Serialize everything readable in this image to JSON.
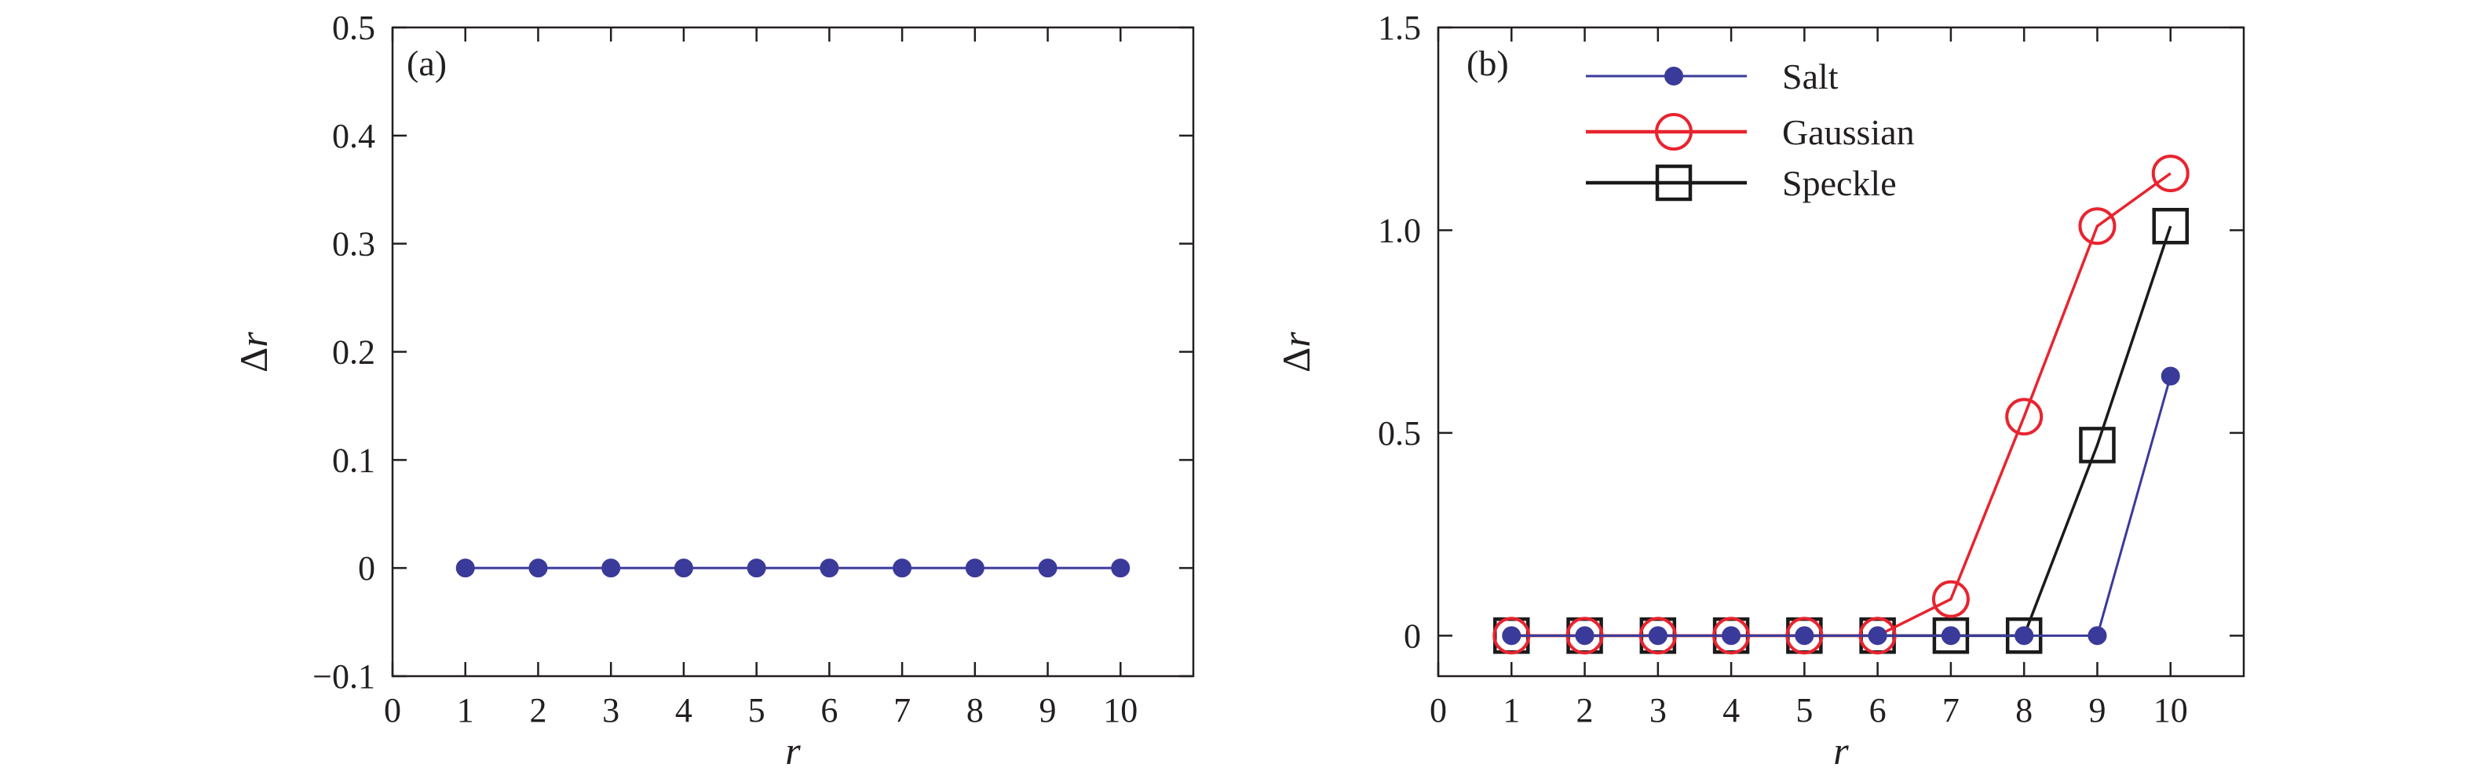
{
  "chart_data": [
    {
      "type": "line",
      "panel_label": "(a)",
      "xlabel": "r",
      "ylabel": "Δr",
      "xlim": [
        0,
        11
      ],
      "ylim": [
        -0.1,
        0.5
      ],
      "x_ticks": [
        0,
        1,
        2,
        3,
        4,
        5,
        6,
        7,
        8,
        9,
        10
      ],
      "y_ticks": [
        -0.1,
        0,
        0.1,
        0.2,
        0.3,
        0.4,
        0.5
      ],
      "y_tick_labels": [
        "−0.1",
        "0",
        "0.1",
        "0.2",
        "0.3",
        "0.4",
        "0.5"
      ],
      "x": [
        1,
        2,
        3,
        4,
        5,
        6,
        7,
        8,
        9,
        10
      ],
      "series": [
        {
          "values": [
            0,
            0,
            0,
            0,
            0,
            0,
            0,
            0,
            0,
            0
          ],
          "color": "#3a3a9a",
          "marker": "filled-circle"
        }
      ],
      "grid": false
    },
    {
      "type": "line",
      "panel_label": "(b)",
      "xlabel": "r",
      "ylabel": "Δr",
      "xlim": [
        0,
        11
      ],
      "ylim": [
        -0.1,
        1.5
      ],
      "x_ticks": [
        0,
        1,
        2,
        3,
        4,
        5,
        6,
        7,
        8,
        9,
        10
      ],
      "y_ticks": [
        0,
        0.5,
        1.0,
        1.5
      ],
      "y_tick_labels": [
        "0",
        "0.5",
        "1.0",
        "1.5"
      ],
      "x": [
        1,
        2,
        3,
        4,
        5,
        6,
        7,
        8,
        9,
        10
      ],
      "series": [
        {
          "name": "Salt",
          "values": [
            0,
            0,
            0,
            0,
            0,
            0,
            0,
            0,
            0,
            0.64
          ],
          "color": "#3a3a9a",
          "marker": "filled-circle"
        },
        {
          "name": "Gaussian",
          "values": [
            0,
            0,
            0,
            0,
            0,
            0,
            0.09,
            0.54,
            1.01,
            1.14
          ],
          "color": "#e8242f",
          "marker": "open-circle"
        },
        {
          "name": "Speckle",
          "values": [
            0,
            0,
            0,
            0,
            0,
            0,
            0,
            0,
            0.47,
            1.01
          ],
          "color": "#1a1a1a",
          "marker": "open-square"
        }
      ],
      "legend_position": "top-left",
      "grid": false
    }
  ]
}
